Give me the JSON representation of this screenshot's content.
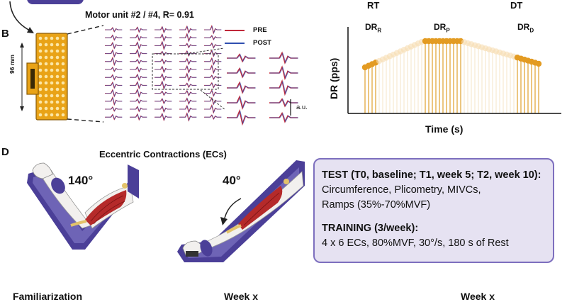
{
  "panel_b": {
    "letter": "B",
    "motor_unit_title": "Motor unit #2 / #4, R= 0.91",
    "electrode_size": "96 mm",
    "legend": [
      {
        "label": "PRE",
        "color": "#c0283a"
      },
      {
        "label": "POST",
        "color": "#2f4fb0"
      }
    ],
    "scale_label": "a.u."
  },
  "discharge_plot": {
    "rt_label": "RT",
    "dt_label": "DT",
    "dr_r": {
      "main": "DR",
      "sub": "R"
    },
    "dr_p": {
      "main": "DR",
      "sub": "P"
    },
    "dr_d": {
      "main": "DR",
      "sub": "D"
    },
    "ylabel": "DR (pps)",
    "xlabel": "Time (s)",
    "bar_color": "#e8b860",
    "dot_color": "#e39b22"
  },
  "panel_d": {
    "letter": "D",
    "title": "Eccentric Contractions (ECs)",
    "angle_start": "140°",
    "angle_end": "40°",
    "test_heading": "TEST (T0, baseline; T1, week 5; T2, week 10):",
    "test_lines": [
      "Circumference, Plicometry,  MIVCs,",
      "Ramps (35%-70%MVF)"
    ],
    "training_heading": "TRAINING (3/week):",
    "training_lines": [
      "4 x 6 ECs, 80%MVF, 30°/s, 180 s of Rest"
    ]
  },
  "bottom_cut": [
    "Familiarization",
    "Week x",
    "Week x"
  ]
}
